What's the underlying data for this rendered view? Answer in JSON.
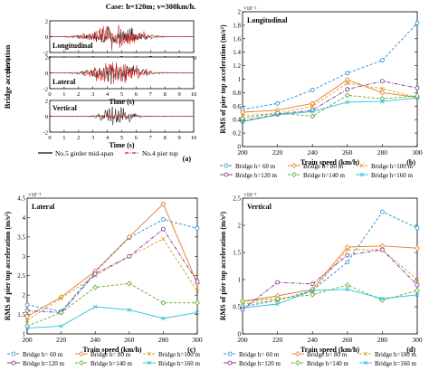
{
  "chart_data": [
    {
      "panel": "(a)",
      "type": "line",
      "title": "Case: h=120m; v=300km/h.",
      "xlabel": "Time (s)",
      "ylabel": "Bridge acceleration",
      "ylabel_unit": "(m/s²)",
      "xlim": [
        0,
        10
      ],
      "x_ticks": [
        "0",
        "1",
        "2",
        "3",
        "4",
        "5",
        "6",
        "7",
        "8",
        "9",
        "10"
      ],
      "subplots": [
        {
          "label": "Longitudinal",
          "ylim": [
            -2,
            2
          ],
          "y_ticks": [
            "2",
            "0",
            "-2"
          ],
          "envelope": {
            "black": 1.75,
            "red": 1.9
          }
        },
        {
          "label": "Lateral",
          "ylim": [
            -2,
            2
          ],
          "y_ticks": [
            "2",
            "0",
            "-2"
          ],
          "envelope": {
            "black": 1.55,
            "red": 1.85
          }
        },
        {
          "label": "Vertical",
          "ylim": [
            -2,
            2
          ],
          "y_ticks": [
            "2",
            "0",
            "-2"
          ],
          "envelope": {
            "black": 1.8,
            "red": 0.35
          }
        }
      ],
      "legend": [
        {
          "name": "No.5 girder mid-span",
          "color": "#000000",
          "style": "solid"
        },
        {
          "name": "No.4 pier top",
          "color": "#dd1111",
          "style": "dashdot"
        }
      ]
    },
    {
      "panel": "(b)",
      "type": "line",
      "label": "Longitudinal",
      "xlabel": "Train speed (km/h)",
      "ylabel": "RMS of pier top acceleration (m/s²)",
      "multiplier": "×10⁻²",
      "x": [
        200,
        220,
        240,
        260,
        280,
        300
      ],
      "ylim": [
        0,
        2
      ],
      "y_ticks": [
        "0",
        "0.2",
        "0.4",
        "0.6",
        "0.8",
        "1",
        "1.2",
        "1.4",
        "1.6",
        "1.8",
        "2"
      ],
      "series": [
        {
          "name": "Bridge h=  60 m",
          "color": "#1f8fd6",
          "values": [
            0.55,
            0.64,
            0.84,
            1.09,
            1.28,
            1.83
          ]
        },
        {
          "name": "Bridge h=  80 m",
          "color": "#e8792b",
          "values": [
            0.51,
            0.54,
            0.64,
            0.99,
            0.8,
            0.73
          ]
        },
        {
          "name": "Bridge h=100 m",
          "color": "#d6a21c",
          "values": [
            0.46,
            0.49,
            0.6,
            0.94,
            0.86,
            0.73
          ]
        },
        {
          "name": "Bridge h=120 m",
          "color": "#7a2d8f",
          "values": [
            0.38,
            0.48,
            0.54,
            0.85,
            0.97,
            0.87
          ]
        },
        {
          "name": "Bridge h=140 m",
          "color": "#5aaa2a",
          "values": [
            0.42,
            0.5,
            0.45,
            0.76,
            0.71,
            0.75
          ]
        },
        {
          "name": "Bridge h=160 m",
          "color": "#2ec0d8",
          "values": [
            0.37,
            0.47,
            0.52,
            0.66,
            0.67,
            0.72
          ]
        }
      ]
    },
    {
      "panel": "(c)",
      "type": "line",
      "label": "Lateral",
      "xlabel": "Train speed (km/h)",
      "ylabel": "RMS of pier top acceleration (m/s²)",
      "multiplier": "×10⁻²",
      "x": [
        200,
        220,
        240,
        260,
        280,
        300
      ],
      "ylim": [
        1,
        4.5
      ],
      "y_ticks": [
        "1",
        "1.5",
        "2",
        "2.5",
        "3",
        "3.5",
        "4",
        "4.5"
      ],
      "series": [
        {
          "name": "Bridge h=  60 m",
          "color": "#1f8fd6",
          "values": [
            1.75,
            1.58,
            2.6,
            3.48,
            3.95,
            3.72
          ]
        },
        {
          "name": "Bridge h=  80 m",
          "color": "#e8792b",
          "values": [
            1.45,
            1.95,
            2.62,
            3.5,
            4.35,
            2.3
          ]
        },
        {
          "name": "Bridge h=100 m",
          "color": "#d6a21c",
          "values": [
            1.35,
            1.92,
            2.5,
            3.0,
            3.45,
            2.1
          ]
        },
        {
          "name": "Bridge h=120 m",
          "color": "#7a2d8f",
          "values": [
            1.6,
            1.55,
            2.55,
            3.0,
            3.7,
            2.35
          ]
        },
        {
          "name": "Bridge h=140 m",
          "color": "#5aaa2a",
          "values": [
            1.2,
            1.55,
            2.2,
            2.3,
            1.8,
            1.8
          ]
        },
        {
          "name": "Bridge h=160 m",
          "color": "#2ec0d8",
          "values": [
            1.15,
            1.2,
            1.7,
            1.62,
            1.4,
            1.55
          ]
        }
      ]
    },
    {
      "panel": "(d)",
      "type": "line",
      "label": "Vertical",
      "xlabel": "Train speed (km/h)",
      "ylabel": "RMS of pier top acceleration (m/s²)",
      "multiplier": "×10⁻²",
      "x": [
        200,
        220,
        240,
        260,
        280,
        300
      ],
      "ylim": [
        0,
        2.5
      ],
      "y_ticks": [
        "0",
        "0.5",
        "1",
        "1.5",
        "2",
        "2.5"
      ],
      "series": [
        {
          "name": "Bridge h=  60 m",
          "color": "#1f8fd6",
          "values": [
            0.5,
            0.62,
            0.8,
            1.32,
            2.25,
            1.95
          ]
        },
        {
          "name": "Bridge h=  80 m",
          "color": "#e8792b",
          "values": [
            0.6,
            0.7,
            0.82,
            1.6,
            1.62,
            1.58
          ]
        },
        {
          "name": "Bridge h=100 m",
          "color": "#d6a21c",
          "values": [
            0.55,
            0.62,
            0.78,
            1.55,
            1.55,
            1.0
          ]
        },
        {
          "name": "Bridge h=120 m",
          "color": "#7a2d8f",
          "values": [
            0.45,
            0.95,
            0.92,
            1.45,
            1.55,
            0.9
          ]
        },
        {
          "name": "Bridge h=140 m",
          "color": "#5aaa2a",
          "values": [
            0.6,
            0.65,
            0.72,
            0.9,
            0.62,
            0.8
          ]
        },
        {
          "name": "Bridge h=160 m",
          "color": "#2ec0d8",
          "values": [
            0.48,
            0.55,
            0.8,
            0.82,
            0.65,
            0.72
          ]
        }
      ]
    }
  ]
}
